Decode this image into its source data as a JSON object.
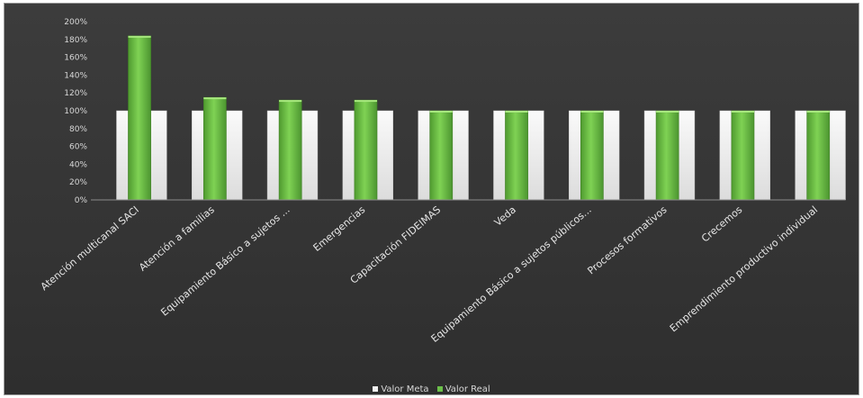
{
  "chart_data": {
    "type": "bar",
    "categories": [
      "Atención multicanal SACI",
      "Atención a familias",
      "Equipamiento Básico a sujetos ...",
      "Emergencias",
      "Capacitación FIDEIMAS",
      "Veda",
      "Equipamiento Básico a sujetos públicos...",
      "Procesos formativos",
      "Crecemos",
      "Emprendimiento productivo individual"
    ],
    "series": [
      {
        "name": "Valor Meta",
        "values": [
          100,
          100,
          100,
          100,
          100,
          100,
          100,
          100,
          100,
          100
        ],
        "color": "#f0f0f0"
      },
      {
        "name": "Valor Real",
        "values": [
          184,
          115,
          112,
          112,
          100,
          100,
          100,
          100,
          100,
          100
        ],
        "color": "#6cc04a"
      }
    ],
    "yticks": [
      "0%",
      "20%",
      "40%",
      "60%",
      "80%",
      "100%",
      "120%",
      "140%",
      "160%",
      "180%",
      "200%"
    ],
    "ylim": [
      0,
      200
    ],
    "grid": false,
    "legend_position": "bottom"
  },
  "colors": {
    "background": "#383838",
    "meta": "#f0f0f0",
    "real": "#6cc04a"
  }
}
